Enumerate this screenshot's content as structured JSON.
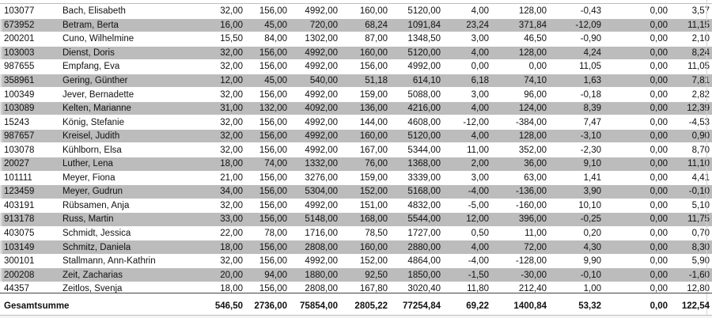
{
  "rows": [
    {
      "id": "103077",
      "name": "Bach, Elisabeth",
      "c1": "32,00",
      "c2": "156,00",
      "c3": "4992,00",
      "c4": "160,00",
      "c5": "5120,00",
      "c6": "4,00",
      "c7": "128,00",
      "c8": "-0,43",
      "c9": "0,00",
      "c10": "3,57"
    },
    {
      "id": "673952",
      "name": "Betram, Berta",
      "c1": "16,00",
      "c2": "45,00",
      "c3": "720,00",
      "c4": "68,24",
      "c5": "1091,84",
      "c6": "23,24",
      "c7": "371,84",
      "c8": "-12,09",
      "c9": "0,00",
      "c10": "11,15"
    },
    {
      "id": "200201",
      "name": "Cuno, Wilhelmine",
      "c1": "15,50",
      "c2": "84,00",
      "c3": "1302,00",
      "c4": "87,00",
      "c5": "1348,50",
      "c6": "3,00",
      "c7": "46,50",
      "c8": "-0,90",
      "c9": "0,00",
      "c10": "2,10"
    },
    {
      "id": "103003",
      "name": "Dienst, Doris",
      "c1": "32,00",
      "c2": "156,00",
      "c3": "4992,00",
      "c4": "160,00",
      "c5": "5120,00",
      "c6": "4,00",
      "c7": "128,00",
      "c8": "4,24",
      "c9": "0,00",
      "c10": "8,24"
    },
    {
      "id": "987655",
      "name": "Empfang, Eva",
      "c1": "32,00",
      "c2": "156,00",
      "c3": "4992,00",
      "c4": "156,00",
      "c5": "4992,00",
      "c6": "0,00",
      "c7": "0,00",
      "c8": "11,05",
      "c9": "0,00",
      "c10": "11,05"
    },
    {
      "id": "358961",
      "name": "Gering, Günther",
      "c1": "12,00",
      "c2": "45,00",
      "c3": "540,00",
      "c4": "51,18",
      "c5": "614,10",
      "c6": "6,18",
      "c7": "74,10",
      "c8": "1,63",
      "c9": "0,00",
      "c10": "7,81"
    },
    {
      "id": "100349",
      "name": "Jever, Bernadette",
      "c1": "32,00",
      "c2": "156,00",
      "c3": "4992,00",
      "c4": "159,00",
      "c5": "5088,00",
      "c6": "3,00",
      "c7": "96,00",
      "c8": "-0,18",
      "c9": "0,00",
      "c10": "2,82"
    },
    {
      "id": "103089",
      "name": "Kelten, Marianne",
      "c1": "31,00",
      "c2": "132,00",
      "c3": "4092,00",
      "c4": "136,00",
      "c5": "4216,00",
      "c6": "4,00",
      "c7": "124,00",
      "c8": "8,39",
      "c9": "0,00",
      "c10": "12,39"
    },
    {
      "id": "15243",
      "name": "König, Stefanie",
      "c1": "32,00",
      "c2": "156,00",
      "c3": "4992,00",
      "c4": "144,00",
      "c5": "4608,00",
      "c6": "-12,00",
      "c7": "-384,00",
      "c8": "7,47",
      "c9": "0,00",
      "c10": "-4,53"
    },
    {
      "id": "987657",
      "name": "Kreisel, Judith",
      "c1": "32,00",
      "c2": "156,00",
      "c3": "4992,00",
      "c4": "160,00",
      "c5": "5120,00",
      "c6": "4,00",
      "c7": "128,00",
      "c8": "-3,10",
      "c9": "0,00",
      "c10": "0,90"
    },
    {
      "id": "103078",
      "name": "Kühlborn, Elsa",
      "c1": "32,00",
      "c2": "156,00",
      "c3": "4992,00",
      "c4": "167,00",
      "c5": "5344,00",
      "c6": "11,00",
      "c7": "352,00",
      "c8": "-2,30",
      "c9": "0,00",
      "c10": "8,70"
    },
    {
      "id": "20027",
      "name": "Luther, Lena",
      "c1": "18,00",
      "c2": "74,00",
      "c3": "1332,00",
      "c4": "76,00",
      "c5": "1368,00",
      "c6": "2,00",
      "c7": "36,00",
      "c8": "9,10",
      "c9": "0,00",
      "c10": "11,10"
    },
    {
      "id": "101111",
      "name": "Meyer, Fiona",
      "c1": "21,00",
      "c2": "156,00",
      "c3": "3276,00",
      "c4": "159,00",
      "c5": "3339,00",
      "c6": "3,00",
      "c7": "63,00",
      "c8": "1,41",
      "c9": "0,00",
      "c10": "4,41"
    },
    {
      "id": "123459",
      "name": "Meyer, Gudrun",
      "c1": "34,00",
      "c2": "156,00",
      "c3": "5304,00",
      "c4": "152,00",
      "c5": "5168,00",
      "c6": "-4,00",
      "c7": "-136,00",
      "c8": "3,90",
      "c9": "0,00",
      "c10": "-0,10"
    },
    {
      "id": "403191",
      "name": "Rübsamen, Anja",
      "c1": "32,00",
      "c2": "156,00",
      "c3": "4992,00",
      "c4": "151,00",
      "c5": "4832,00",
      "c6": "-5,00",
      "c7": "-160,00",
      "c8": "10,10",
      "c9": "0,00",
      "c10": "5,10"
    },
    {
      "id": "913178",
      "name": "Russ, Martin",
      "c1": "33,00",
      "c2": "156,00",
      "c3": "5148,00",
      "c4": "168,00",
      "c5": "5544,00",
      "c6": "12,00",
      "c7": "396,00",
      "c8": "-0,25",
      "c9": "0,00",
      "c10": "11,75"
    },
    {
      "id": "403075",
      "name": "Schmidt, Jessica",
      "c1": "22,00",
      "c2": "78,00",
      "c3": "1716,00",
      "c4": "78,50",
      "c5": "1727,00",
      "c6": "0,50",
      "c7": "11,00",
      "c8": "0,20",
      "c9": "0,00",
      "c10": "0,70"
    },
    {
      "id": "103149",
      "name": "Schmitz, Daniela",
      "c1": "18,00",
      "c2": "156,00",
      "c3": "2808,00",
      "c4": "160,00",
      "c5": "2880,00",
      "c6": "4,00",
      "c7": "72,00",
      "c8": "4,30",
      "c9": "0,00",
      "c10": "8,30"
    },
    {
      "id": "300101",
      "name": "Stallmann, Ann-Kathrin",
      "c1": "32,00",
      "c2": "156,00",
      "c3": "4992,00",
      "c4": "152,00",
      "c5": "4864,00",
      "c6": "-4,00",
      "c7": "-128,00",
      "c8": "9,90",
      "c9": "0,00",
      "c10": "5,90"
    },
    {
      "id": "200208",
      "name": "Zeit, Zacharias",
      "c1": "20,00",
      "c2": "94,00",
      "c3": "1880,00",
      "c4": "92,50",
      "c5": "1850,00",
      "c6": "-1,50",
      "c7": "-30,00",
      "c8": "-0,10",
      "c9": "0,00",
      "c10": "-1,60"
    },
    {
      "id": "44357",
      "name": "Zeitlos, Svenja",
      "c1": "18,00",
      "c2": "156,00",
      "c3": "2808,00",
      "c4": "167,80",
      "c5": "3020,40",
      "c6": "11,80",
      "c7": "212,40",
      "c8": "1,00",
      "c9": "0,00",
      "c10": "12,80"
    }
  ],
  "total": {
    "label": "Gesamtsumme",
    "c1": "546,50",
    "c2": "2736,00",
    "c3": "75854,00",
    "c4": "2805,22",
    "c5": "77254,84",
    "c6": "69,22",
    "c7": "1400,84",
    "c8": "53,32",
    "c9": "0,00",
    "c10": "122,54"
  }
}
